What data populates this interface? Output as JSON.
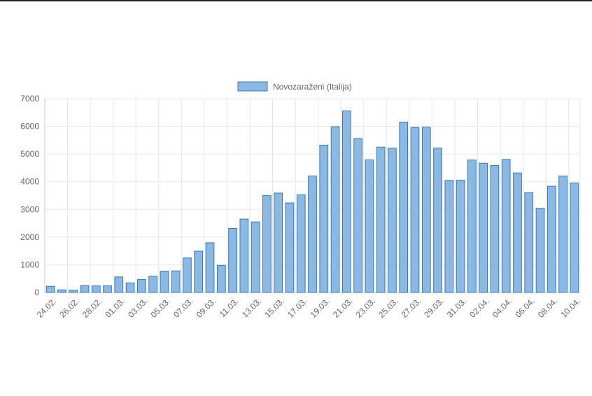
{
  "chart_data": {
    "type": "bar",
    "legend": "top-center",
    "grid": true,
    "ylim": [
      0,
      7000
    ],
    "y_ticks": [
      0,
      1000,
      2000,
      3000,
      4000,
      5000,
      6000,
      7000
    ],
    "series": [
      {
        "name": "Novozaraženi (Italija)",
        "values": [
          221,
          93,
          78,
          250,
          238,
          240,
          561,
          347,
          466,
          587,
          769,
          778,
          1247,
          1492,
          1797,
          977,
          2313,
          2651,
          2547,
          3497,
          3590,
          3233,
          3526,
          4207,
          5322,
          5986,
          6557,
          5560,
          4789,
          5249,
          5210,
          6153,
          5959,
          5974,
          5217,
          4050,
          4053,
          4782,
          4668,
          4585,
          4805,
          4316,
          3599,
          3039,
          3836,
          4204,
          3951
        ]
      }
    ],
    "categories": [
      "24.02.",
      "25.02.",
      "26.02.",
      "27.02.",
      "28.02.",
      "29.02.",
      "01.03.",
      "02.03.",
      "03.03.",
      "04.03.",
      "05.03.",
      "06.03.",
      "07.03.",
      "08.03.",
      "09.03.",
      "10.03.",
      "11.03.",
      "12.03.",
      "13.03.",
      "14.03.",
      "15.03.",
      "16.03.",
      "17.03.",
      "18.03.",
      "19.03.",
      "20.03.",
      "21.03.",
      "22.03.",
      "23.03.",
      "24.03.",
      "25.03.",
      "26.03.",
      "27.03.",
      "28.03.",
      "29.03.",
      "30.03.",
      "31.03.",
      "01.04.",
      "02.04.",
      "03.04.",
      "04.04.",
      "05.04.",
      "06.04.",
      "07.04.",
      "08.04.",
      "09.04.",
      "10.04."
    ],
    "x_tick_labels": [
      "24.02.",
      "26.02.",
      "28.02.",
      "01.03.",
      "03.03.",
      "05.03.",
      "07.03.",
      "09.03.",
      "11.03.",
      "13.03.",
      "15.03.",
      "17.03.",
      "19.03.",
      "21.03.",
      "23.03.",
      "25.03.",
      "27.03.",
      "29.03.",
      "31.03.",
      "02.04.",
      "04.04.",
      "06.04.",
      "08.04.",
      "10.04."
    ],
    "colors": {
      "bar_fill": "#8cb9e3",
      "bar_stroke": "#3a78b0",
      "grid": "#e6e6e6",
      "axis": "#c8c8c8"
    }
  }
}
